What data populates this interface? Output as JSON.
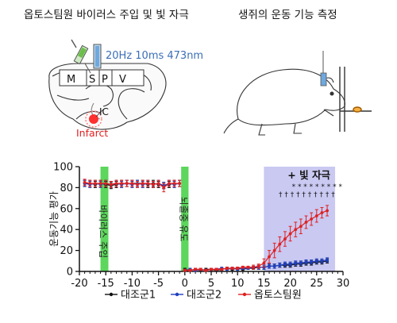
{
  "panels": {
    "left_title": "옵토스팀원 바이러스 주입 및 빛 자극",
    "right_title": "생쥐의 운동 기능 측정",
    "stim_label": "20Hz 10ms 473nm",
    "region_m": "M",
    "region_s": "S",
    "region_p": "P",
    "region_v": "V",
    "region_ic": "IC",
    "infarct_label": "Infarct"
  },
  "chart_data": {
    "type": "line",
    "ylabel": "운동기능 평가",
    "xlim": [
      -20,
      30
    ],
    "ylim": [
      0,
      100
    ],
    "xticks": [
      -20,
      -15,
      -10,
      -5,
      0,
      5,
      10,
      15,
      20,
      25,
      30
    ],
    "yticks": [
      0,
      20,
      40,
      60,
      80,
      100
    ],
    "x_tick_labels": [
      "-20",
      "-15",
      "-10",
      "-5",
      "0",
      "5",
      "10",
      "15",
      "20",
      "25",
      "30"
    ],
    "y_tick_labels": [
      "0",
      "20",
      "40",
      "60",
      "80",
      "100"
    ],
    "annotations": {
      "virus_injection": "바이러스 주입",
      "stroke_induction": "뇌졸중 유도",
      "light_stim": "+ 빛 자극",
      "stars": "* * * * * * * * *",
      "daggers": "† † † † † † † † † †"
    },
    "shaded_regions": [
      {
        "name": "virus",
        "x0": -16,
        "x1": -14.5,
        "color": "#5cd65c"
      },
      {
        "name": "stroke",
        "x0": -0.7,
        "x1": 0.7,
        "color": "#5cd65c"
      },
      {
        "name": "light",
        "x0": 15,
        "x1": 28.5,
        "color": "#c9c9f2"
      }
    ],
    "legend_position": "bottom",
    "series": [
      {
        "name": "대조군1",
        "color": "#111111",
        "x": [
          -19,
          -18,
          -17,
          -16,
          -15,
          -14,
          -13,
          -12,
          -11,
          -10,
          -9,
          -8,
          -7,
          -6,
          -5,
          -4,
          -3,
          -2,
          -1,
          0,
          1,
          2,
          3,
          4,
          5,
          6,
          7,
          8,
          9,
          10,
          11,
          12,
          13,
          14,
          15,
          16,
          17,
          18,
          19,
          20,
          21,
          22,
          23,
          24,
          25,
          26,
          27
        ],
        "y": [
          84,
          84,
          83,
          84,
          83,
          82,
          83,
          84,
          84,
          84,
          84,
          84,
          83,
          84,
          83,
          82,
          83,
          84,
          84,
          2,
          1,
          2,
          1,
          2,
          2,
          1,
          2,
          3,
          2,
          3,
          2,
          3,
          3,
          4,
          4,
          5,
          5,
          6,
          6,
          6,
          7,
          7,
          8,
          8,
          9,
          9,
          10
        ],
        "err": [
          3,
          3,
          3,
          3,
          3,
          3,
          3,
          3,
          3,
          3,
          3,
          3,
          3,
          3,
          3,
          3,
          3,
          3,
          3,
          1,
          1,
          1,
          1,
          1,
          1,
          1,
          1,
          1,
          1,
          1,
          1,
          1,
          1,
          2,
          2,
          2,
          2,
          2,
          2,
          2,
          2,
          2,
          2,
          2,
          2,
          2,
          2
        ]
      },
      {
        "name": "대조군2",
        "color": "#1f3fbf",
        "x": [
          -19,
          -18,
          -17,
          -16,
          -15,
          -14,
          -13,
          -12,
          -11,
          -10,
          -9,
          -8,
          -7,
          -6,
          -5,
          -4,
          -3,
          -2,
          -1,
          0,
          1,
          2,
          3,
          4,
          5,
          6,
          7,
          8,
          9,
          10,
          11,
          12,
          13,
          14,
          15,
          16,
          17,
          18,
          19,
          20,
          21,
          22,
          23,
          24,
          25,
          26,
          27
        ],
        "y": [
          84,
          83,
          84,
          83,
          84,
          83,
          84,
          83,
          84,
          83,
          84,
          83,
          84,
          83,
          84,
          82,
          84,
          83,
          84,
          1,
          2,
          1,
          2,
          1,
          2,
          2,
          3,
          2,
          3,
          2,
          3,
          3,
          4,
          4,
          4,
          5,
          5,
          6,
          7,
          7,
          8,
          8,
          9,
          9,
          10,
          10,
          11
        ],
        "err": [
          3,
          3,
          3,
          3,
          3,
          3,
          3,
          3,
          3,
          3,
          3,
          3,
          3,
          3,
          3,
          3,
          3,
          3,
          3,
          1,
          1,
          1,
          1,
          1,
          1,
          1,
          1,
          1,
          1,
          1,
          1,
          1,
          1,
          2,
          2,
          2,
          2,
          2,
          2,
          2,
          2,
          2,
          2,
          2,
          2,
          2,
          2
        ]
      },
      {
        "name": "옵토스팀원",
        "color": "#e02020",
        "x": [
          -19,
          -18,
          -17,
          -16,
          -15,
          -14,
          -13,
          -12,
          -11,
          -10,
          -9,
          -8,
          -7,
          -6,
          -5,
          -4,
          -3,
          -2,
          -1,
          0,
          1,
          2,
          3,
          4,
          5,
          6,
          7,
          8,
          9,
          10,
          11,
          12,
          13,
          14,
          15,
          16,
          17,
          18,
          19,
          20,
          21,
          22,
          23,
          24,
          25,
          26,
          27
        ],
        "y": [
          85,
          84,
          84,
          84,
          84,
          83,
          84,
          84,
          84,
          84,
          83,
          84,
          84,
          83,
          84,
          80,
          84,
          84,
          84,
          1,
          1,
          2,
          2,
          1,
          2,
          2,
          2,
          3,
          3,
          3,
          4,
          4,
          4,
          5,
          8,
          14,
          20,
          26,
          31,
          36,
          40,
          43,
          47,
          50,
          53,
          56,
          58
        ],
        "err": [
          3,
          3,
          3,
          3,
          3,
          3,
          3,
          3,
          3,
          3,
          3,
          3,
          3,
          3,
          3,
          4,
          3,
          3,
          3,
          1,
          1,
          1,
          1,
          1,
          1,
          1,
          1,
          1,
          1,
          1,
          1,
          1,
          2,
          2,
          4,
          6,
          7,
          7,
          7,
          7,
          7,
          7,
          6,
          6,
          6,
          5,
          5
        ]
      }
    ]
  }
}
